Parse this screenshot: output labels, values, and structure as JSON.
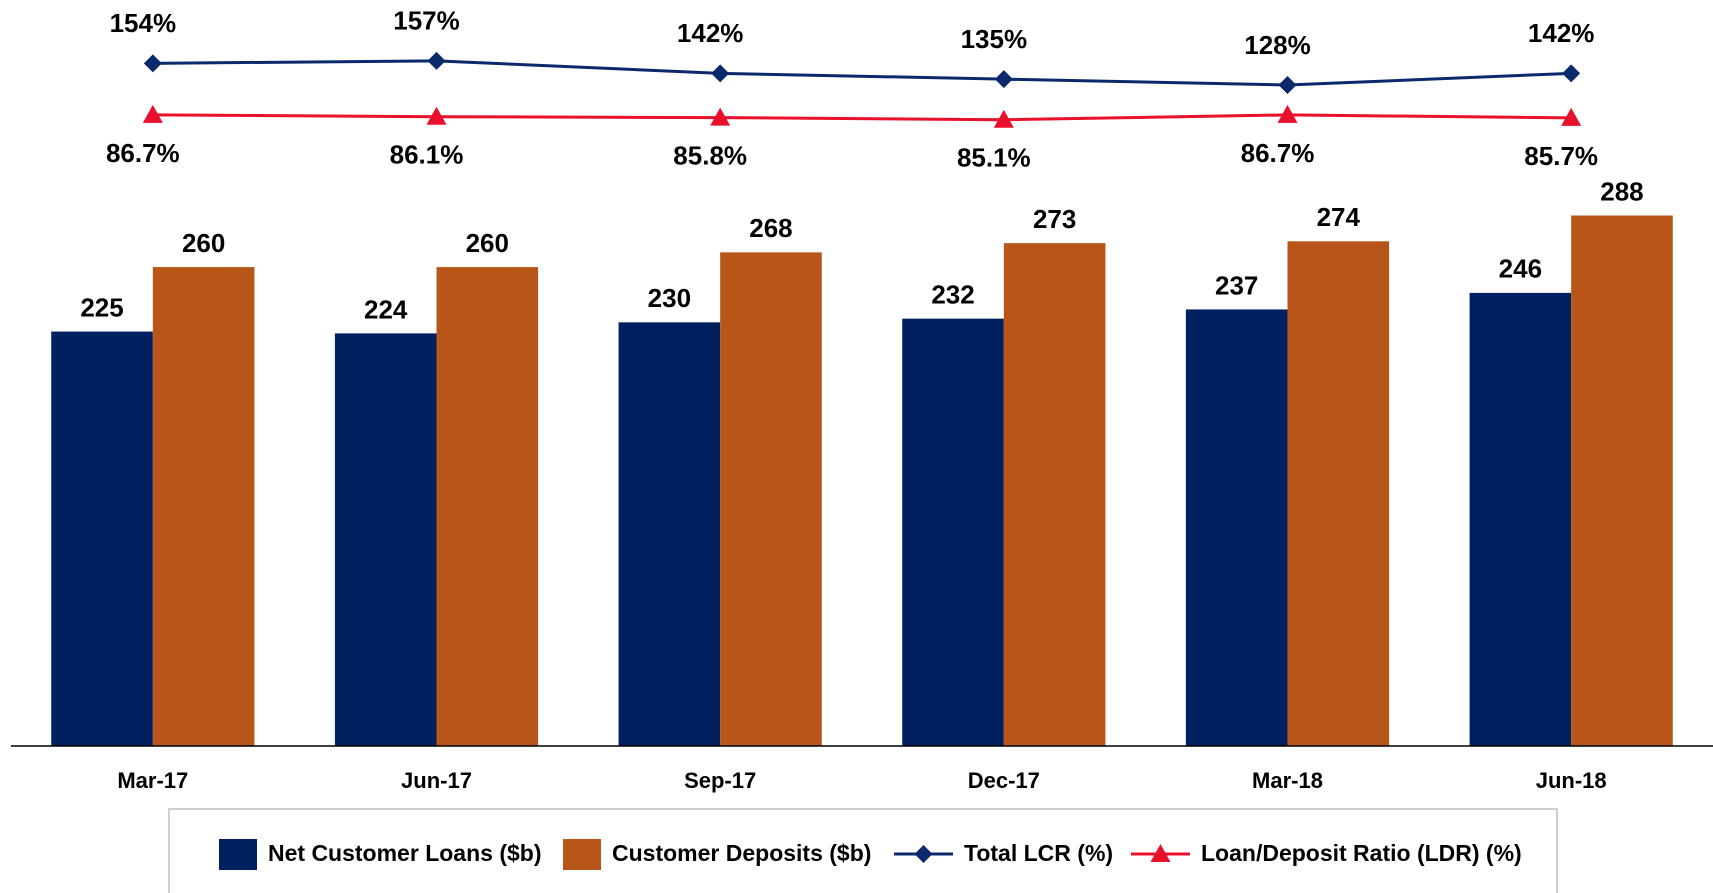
{
  "chart_data": {
    "type": "bar",
    "categories": [
      "Mar-17",
      "Jun-17",
      "Sep-17",
      "Dec-17",
      "Mar-18",
      "Jun-18"
    ],
    "ylim": [
      0,
      405
    ],
    "series": [
      {
        "name": "Net Customer Loans ($b)",
        "color": "#002060",
        "type": "bar",
        "values": [
          225,
          224,
          230,
          232,
          237,
          246
        ]
      },
      {
        "name": "Customer Deposits ($b)",
        "color": "#b8561a",
        "type": "bar",
        "values": [
          260,
          260,
          268,
          273,
          274,
          288
        ]
      },
      {
        "name": "Total LCR (%)",
        "color": "#0c2a6b",
        "type": "line",
        "marker": "diamond",
        "ylim": [
          110,
          170
        ],
        "values": [
          154,
          157,
          142,
          135,
          128,
          142
        ],
        "value_labels": [
          "154%",
          "157%",
          "142%",
          "135%",
          "128%",
          "142%"
        ]
      },
      {
        "name": "Loan/Deposit Ratio (LDR) (%)",
        "color": "#e8102a",
        "type": "line",
        "marker": "triangle",
        "ylim": [
          80,
          90
        ],
        "values": [
          86.7,
          86.1,
          85.8,
          85.1,
          86.7,
          85.7
        ],
        "value_labels": [
          "86.7%",
          "86.1%",
          "85.8%",
          "85.1%",
          "86.7%",
          "85.7%"
        ]
      }
    ]
  }
}
